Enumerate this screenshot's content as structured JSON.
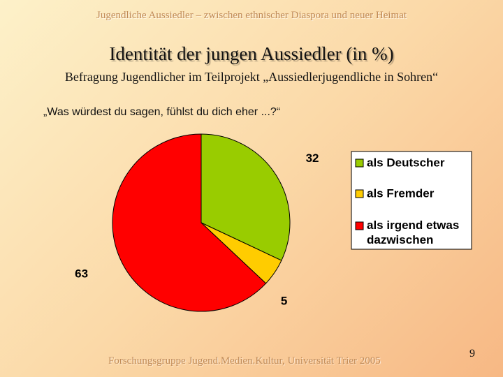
{
  "header": {
    "text": "Jugendliche Aussiedler – zwischen ethnischer Diaspora und neuer Heimat"
  },
  "slide": {
    "title": "Identität der jungen Aussiedler (in %)",
    "subtitle": "Befragung Jugendlicher im Teilprojekt „Aussiedlerjugendliche in Sohren“",
    "question": "„Was würdest du sagen, fühlst du dich eher ...?“",
    "footer": "Forschungsgruppe Jugend.Medien.Kultur, Universität Trier 2005",
    "page_number": "9"
  },
  "chart_data": {
    "type": "pie",
    "title": "",
    "slices": [
      {
        "label": "als Deutscher",
        "value": 32,
        "color": "#99cc00"
      },
      {
        "label": "als Fremder",
        "value": 5,
        "color": "#ffcc00"
      },
      {
        "label": "als irgend etwas dazwischen",
        "value": 63,
        "color": "#ff0000"
      }
    ],
    "data_labels": true,
    "legend_position": "right"
  }
}
